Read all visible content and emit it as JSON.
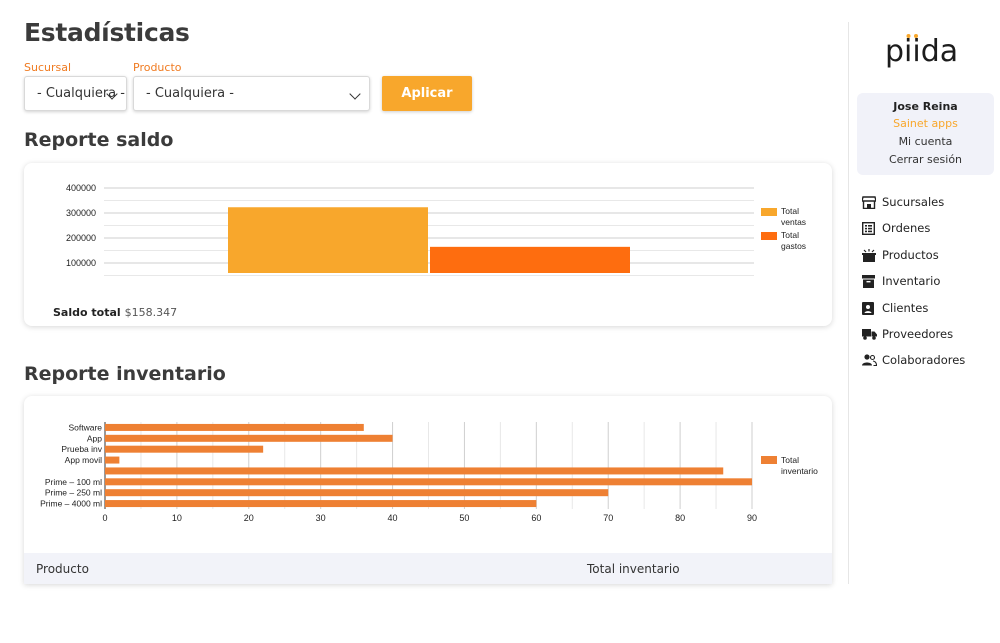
{
  "page": {
    "title": "Estadísticas"
  },
  "filters": {
    "branch": {
      "label": "Sucursal",
      "value": "- Cualquiera -"
    },
    "product": {
      "label": "Producto",
      "value": "- Cualquiera -"
    },
    "apply_label": "Aplicar"
  },
  "balance_report": {
    "title": "Reporte saldo",
    "total_label": "Saldo total",
    "total_value": "$158.347"
  },
  "inventory_report": {
    "title": "Reporte inventario",
    "table_headers": [
      "Producto",
      "Total inventario"
    ]
  },
  "chart_data": [
    {
      "type": "bar",
      "title": "",
      "categories": [
        ""
      ],
      "series": [
        {
          "name": "Total ventas",
          "values": [
            323000
          ],
          "color": "#f8a72c"
        },
        {
          "name": "Total gastos",
          "values": [
            164653
          ],
          "color": "#fe6d0f"
        }
      ],
      "yticks": [
        100000,
        200000,
        300000,
        400000
      ],
      "ylim": [
        60000,
        400000
      ],
      "grid": true,
      "legend": "right"
    },
    {
      "type": "bar",
      "orientation": "horizontal",
      "title": "",
      "categories": [
        "Software",
        "App",
        "Prueba inv",
        "App movil",
        "",
        "Prime – 100 ml",
        "Prime – 250 ml",
        "Prime – 4000 ml"
      ],
      "series": [
        {
          "name": "Total inventario",
          "values": [
            36,
            40,
            22,
            2,
            86,
            90,
            70,
            60
          ],
          "color": "#ee8033"
        }
      ],
      "xticks": [
        0,
        10,
        20,
        30,
        40,
        50,
        60,
        70,
        80,
        90
      ],
      "xlim": [
        0,
        90
      ],
      "grid": true,
      "legend": "right"
    }
  ],
  "sidebar": {
    "logo": "piida",
    "user": {
      "name": "Jose Reina",
      "company": "Sainet apps",
      "account": "Mi cuenta",
      "logout": "Cerrar sesión"
    },
    "nav": [
      {
        "label": "Sucursales",
        "icon": "store-icon"
      },
      {
        "label": "Ordenes",
        "icon": "list-icon"
      },
      {
        "label": "Productos",
        "icon": "box-icon"
      },
      {
        "label": "Inventario",
        "icon": "archive-icon"
      },
      {
        "label": "Clientes",
        "icon": "contact-icon"
      },
      {
        "label": "Proveedores",
        "icon": "truck-icon"
      },
      {
        "label": "Colaboradores",
        "icon": "people-icon"
      }
    ]
  }
}
